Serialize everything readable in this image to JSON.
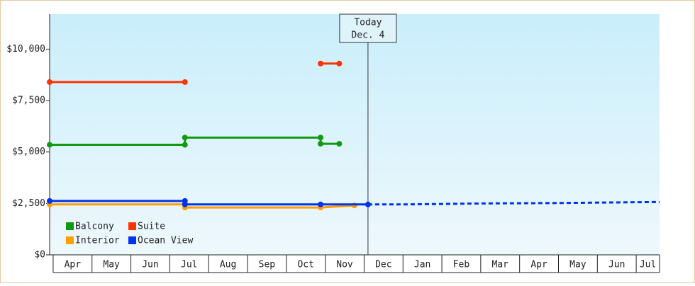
{
  "chart_data": {
    "type": "line",
    "categories": [
      "Apr",
      "May",
      "Jun",
      "Jul",
      "Aug",
      "Sep",
      "Oct",
      "Nov",
      "Dec",
      "Jan",
      "Feb",
      "Mar",
      "Apr",
      "May",
      "Jun",
      "Jul"
    ],
    "xlim": [
      -0.09,
      15.6
    ],
    "ylim": [
      0,
      11700
    ],
    "yticks": [
      {
        "value": 0,
        "label": "$0"
      },
      {
        "value": 2500,
        "label": "$2,500"
      },
      {
        "value": 5000,
        "label": "$5,000"
      },
      {
        "value": 7500,
        "label": "$7,500"
      },
      {
        "value": 10000,
        "label": "$10,000"
      }
    ],
    "series": [
      {
        "name": "Balcony",
        "color": "#119911",
        "x": [
          -0.09,
          3.39,
          3.39,
          6.88,
          6.88,
          7.36
        ],
        "values": [
          5350,
          5350,
          5700,
          5700,
          5400,
          5400
        ]
      },
      {
        "name": "Suite",
        "color": "#ff3300",
        "x": [
          -0.09,
          3.39,
          null,
          6.88,
          7.36
        ],
        "values": [
          8400,
          8400,
          null,
          9300,
          9300
        ]
      },
      {
        "name": "Interior",
        "color": "#ffa000",
        "x": [
          -0.09,
          3.39,
          3.39,
          6.88,
          7.75
        ],
        "values": [
          2450,
          2450,
          2300,
          2300,
          2400
        ]
      },
      {
        "name": "Ocean View",
        "color": "#0033ee",
        "x": [
          -0.09,
          3.39,
          3.39,
          6.88,
          8.1
        ],
        "values": [
          2620,
          2620,
          2450,
          2450,
          2450
        ],
        "forecast": {
          "x": [
            8.1,
            9,
            11.1,
            13,
            15.6
          ],
          "values": [
            2450,
            2450,
            2500,
            2520,
            2570
          ]
        }
      }
    ],
    "annotation": {
      "x": 8.1,
      "lines": [
        "Today",
        "Dec. 4"
      ]
    },
    "legend": "bottom-left"
  }
}
